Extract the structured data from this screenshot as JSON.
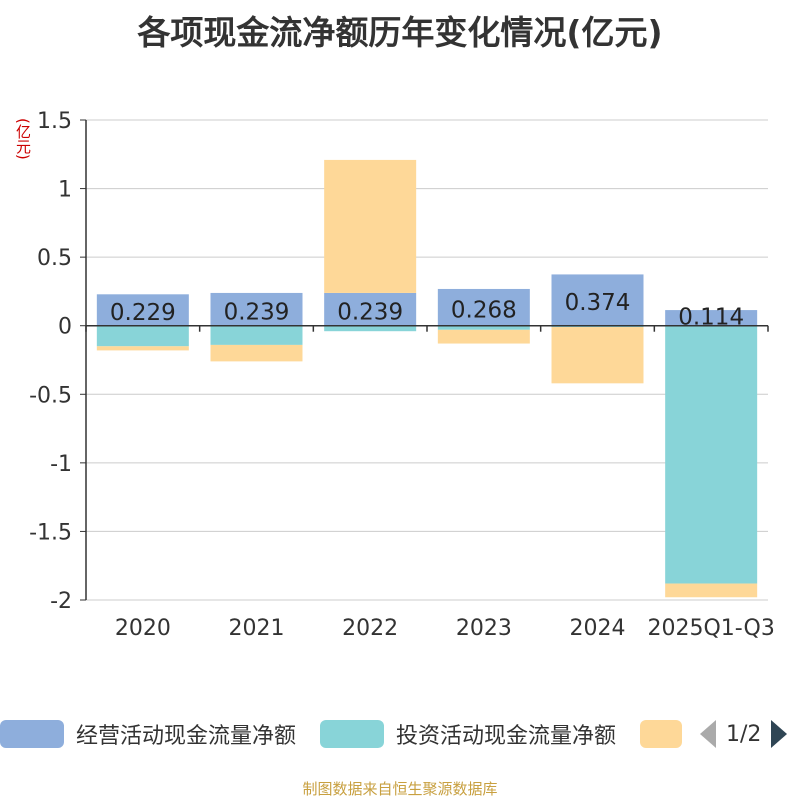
{
  "title": "各项现金流净额历年变化情况(亿元)",
  "unit_label": "(亿元)",
  "source": "制图数据来自恒生聚源数据库",
  "pager": {
    "text": "1/2"
  },
  "colors": {
    "operating": "#8eaedc",
    "investing": "#88d4d8",
    "financing": "#fed898"
  },
  "chart_data": {
    "type": "bar",
    "stacked": true,
    "categories": [
      "2020",
      "2021",
      "2022",
      "2023",
      "2024",
      "2025Q1-Q3"
    ],
    "ylim": [
      -2,
      1.5
    ],
    "yticks": [
      "1.5",
      "1",
      "0.5",
      "0",
      "-0.5",
      "-1",
      "-1.5",
      "-2"
    ],
    "grid": true,
    "legend_position": "bottom",
    "series": [
      {
        "name": "经营活动现金流量净额",
        "values": [
          0.229,
          0.239,
          0.239,
          0.268,
          0.374,
          0.114
        ],
        "labels": [
          "0.229",
          "0.239",
          "0.239",
          "0.268",
          "0.374",
          "0.114"
        ]
      },
      {
        "name": "投资活动现金流量净额",
        "values": [
          -0.15,
          -0.14,
          -0.04,
          -0.03,
          -0.01,
          -1.88
        ]
      },
      {
        "name": "",
        "values": [
          -0.03,
          -0.12,
          0.97,
          -0.1,
          -0.41,
          -0.1
        ]
      }
    ]
  }
}
